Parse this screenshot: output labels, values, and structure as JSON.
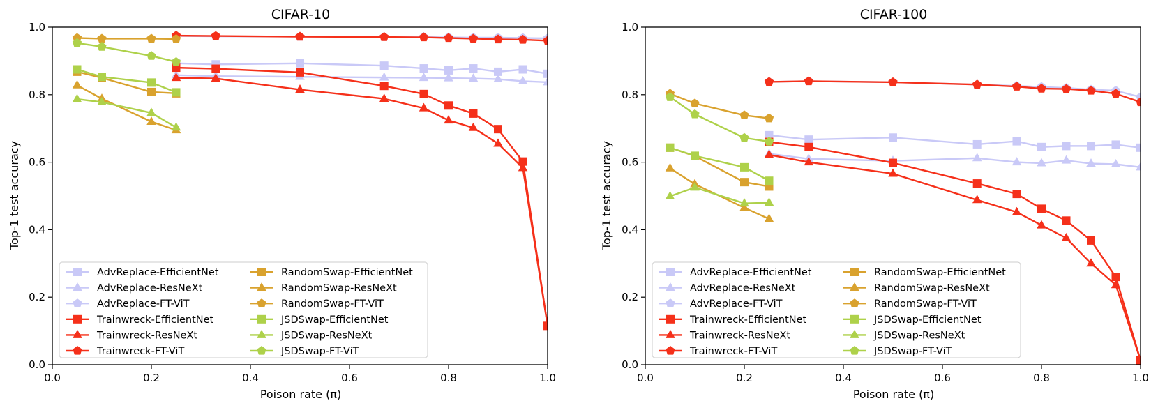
{
  "colors": {
    "advreplace": "#c9c9f7",
    "trainwreck": "#f5301a",
    "randomswap": "#d9a22e",
    "jsdswap": "#aed14a"
  },
  "chart_data": [
    {
      "type": "line",
      "title": "CIFAR-10",
      "xlabel": "Poison rate (π)",
      "ylabel": "Top-1 test accuracy",
      "xlim": [
        0.0,
        1.0
      ],
      "ylim": [
        0.0,
        1.0
      ],
      "xticks": [
        "0.0",
        "0.2",
        "0.4",
        "0.6",
        "0.8",
        "1.0"
      ],
      "yticks": [
        "0.0",
        "0.2",
        "0.4",
        "0.6",
        "0.8",
        "1.0"
      ],
      "legend_position": "lower-left",
      "series": [
        {
          "name": "AdvReplace-EfficientNet",
          "color_key": "advreplace",
          "marker": "square",
          "x": [
            0.25,
            0.33,
            0.5,
            0.67,
            0.75,
            0.8,
            0.85,
            0.9,
            0.95,
            1.0
          ],
          "y": [
            0.893,
            0.89,
            0.893,
            0.886,
            0.878,
            0.872,
            0.878,
            0.868,
            0.875,
            0.862
          ]
        },
        {
          "name": "AdvReplace-ResNeXt",
          "color_key": "advreplace",
          "marker": "triangle",
          "x": [
            0.25,
            0.33,
            0.5,
            0.67,
            0.75,
            0.8,
            0.85,
            0.9,
            0.95,
            1.0
          ],
          "y": [
            0.858,
            0.855,
            0.853,
            0.851,
            0.85,
            0.849,
            0.848,
            0.846,
            0.84,
            0.837
          ]
        },
        {
          "name": "AdvReplace-FT-ViT",
          "color_key": "advreplace",
          "marker": "pentagon",
          "x": [
            0.25,
            0.33,
            0.5,
            0.67,
            0.75,
            0.8,
            0.85,
            0.9,
            0.95,
            1.0
          ],
          "y": [
            0.974,
            0.973,
            0.972,
            0.971,
            0.971,
            0.97,
            0.969,
            0.969,
            0.968,
            0.967
          ]
        },
        {
          "name": "Trainwreck-EfficientNet",
          "color_key": "trainwreck",
          "marker": "square",
          "x": [
            0.25,
            0.33,
            0.5,
            0.67,
            0.75,
            0.8,
            0.85,
            0.9,
            0.95,
            1.0
          ],
          "y": [
            0.88,
            0.877,
            0.866,
            0.826,
            0.802,
            0.768,
            0.744,
            0.698,
            0.602,
            0.115
          ]
        },
        {
          "name": "Trainwreck-ResNeXt",
          "color_key": "trainwreck",
          "marker": "triangle",
          "x": [
            0.25,
            0.33,
            0.5,
            0.67,
            0.75,
            0.8,
            0.85,
            0.9,
            0.95,
            1.0
          ],
          "y": [
            0.85,
            0.848,
            0.815,
            0.788,
            0.76,
            0.724,
            0.702,
            0.655,
            0.583,
            0.115
          ]
        },
        {
          "name": "Trainwreck-FT-ViT",
          "color_key": "trainwreck",
          "marker": "pentagon",
          "x": [
            0.25,
            0.33,
            0.5,
            0.67,
            0.75,
            0.8,
            0.85,
            0.9,
            0.95,
            1.0
          ],
          "y": [
            0.975,
            0.974,
            0.972,
            0.971,
            0.97,
            0.968,
            0.966,
            0.964,
            0.963,
            0.96
          ]
        },
        {
          "name": "RandomSwap-EfficientNet",
          "color_key": "randomswap",
          "marker": "square",
          "x": [
            0.05,
            0.1,
            0.2,
            0.25
          ],
          "y": [
            0.868,
            0.85,
            0.808,
            0.804
          ]
        },
        {
          "name": "RandomSwap-ResNeXt",
          "color_key": "randomswap",
          "marker": "triangle",
          "x": [
            0.05,
            0.1,
            0.2,
            0.25
          ],
          "y": [
            0.828,
            0.788,
            0.72,
            0.695
          ]
        },
        {
          "name": "RandomSwap-FT-ViT",
          "color_key": "randomswap",
          "marker": "pentagon",
          "x": [
            0.05,
            0.1,
            0.2,
            0.25
          ],
          "y": [
            0.968,
            0.966,
            0.966,
            0.965
          ]
        },
        {
          "name": "JSDSwap-EfficientNet",
          "color_key": "jsdswap",
          "marker": "square",
          "x": [
            0.05,
            0.1,
            0.2,
            0.25
          ],
          "y": [
            0.875,
            0.853,
            0.836,
            0.807
          ]
        },
        {
          "name": "JSDSwap-ResNeXt",
          "color_key": "jsdswap",
          "marker": "triangle",
          "x": [
            0.05,
            0.1,
            0.2,
            0.25
          ],
          "y": [
            0.787,
            0.778,
            0.746,
            0.703
          ]
        },
        {
          "name": "JSDSwap-FT-ViT",
          "color_key": "jsdswap",
          "marker": "pentagon",
          "x": [
            0.05,
            0.1,
            0.2,
            0.25
          ],
          "y": [
            0.953,
            0.942,
            0.915,
            0.897
          ]
        }
      ]
    },
    {
      "type": "line",
      "title": "CIFAR-100",
      "xlabel": "Poison rate (π)",
      "ylabel": "Top-1 test accuracy",
      "xlim": [
        0.0,
        1.0
      ],
      "ylim": [
        0.0,
        1.0
      ],
      "xticks": [
        "0.0",
        "0.2",
        "0.4",
        "0.6",
        "0.8",
        "1.0"
      ],
      "yticks": [
        "0.0",
        "0.2",
        "0.4",
        "0.6",
        "0.8",
        "1.0"
      ],
      "legend_position": "lower-left",
      "series": [
        {
          "name": "AdvReplace-EfficientNet",
          "color_key": "advreplace",
          "marker": "square",
          "x": [
            0.25,
            0.33,
            0.5,
            0.67,
            0.75,
            0.8,
            0.85,
            0.9,
            0.95,
            1.0
          ],
          "y": [
            0.68,
            0.667,
            0.673,
            0.653,
            0.662,
            0.645,
            0.648,
            0.648,
            0.652,
            0.643
          ]
        },
        {
          "name": "AdvReplace-ResNeXt",
          "color_key": "advreplace",
          "marker": "triangle",
          "x": [
            0.25,
            0.33,
            0.5,
            0.67,
            0.75,
            0.8,
            0.85,
            0.9,
            0.95,
            1.0
          ],
          "y": [
            0.625,
            0.61,
            0.604,
            0.612,
            0.6,
            0.597,
            0.605,
            0.596,
            0.594,
            0.585
          ]
        },
        {
          "name": "AdvReplace-FT-ViT",
          "color_key": "advreplace",
          "marker": "pentagon",
          "x": [
            0.25,
            0.33,
            0.5,
            0.67,
            0.75,
            0.8,
            0.85,
            0.9,
            0.95,
            1.0
          ],
          "y": [
            0.838,
            0.84,
            0.837,
            0.83,
            0.826,
            0.823,
            0.82,
            0.815,
            0.812,
            0.793
          ]
        },
        {
          "name": "Trainwreck-EfficientNet",
          "color_key": "trainwreck",
          "marker": "square",
          "x": [
            0.25,
            0.33,
            0.5,
            0.67,
            0.75,
            0.8,
            0.85,
            0.9,
            0.95,
            1.0
          ],
          "y": [
            0.66,
            0.645,
            0.598,
            0.537,
            0.506,
            0.462,
            0.427,
            0.368,
            0.26,
            0.013
          ]
        },
        {
          "name": "Trainwreck-ResNeXt",
          "color_key": "trainwreck",
          "marker": "triangle",
          "x": [
            0.25,
            0.33,
            0.5,
            0.67,
            0.75,
            0.8,
            0.85,
            0.9,
            0.95,
            1.0
          ],
          "y": [
            0.622,
            0.6,
            0.566,
            0.488,
            0.452,
            0.413,
            0.375,
            0.3,
            0.236,
            0.013
          ]
        },
        {
          "name": "Trainwreck-FT-ViT",
          "color_key": "trainwreck",
          "marker": "pentagon",
          "x": [
            0.25,
            0.33,
            0.5,
            0.67,
            0.75,
            0.8,
            0.85,
            0.9,
            0.95,
            1.0
          ],
          "y": [
            0.838,
            0.84,
            0.837,
            0.83,
            0.824,
            0.818,
            0.817,
            0.812,
            0.803,
            0.778
          ]
        },
        {
          "name": "RandomSwap-EfficientNet",
          "color_key": "randomswap",
          "marker": "square",
          "x": [
            0.05,
            0.1,
            0.2,
            0.25
          ],
          "y": [
            0.643,
            0.618,
            0.541,
            0.528
          ]
        },
        {
          "name": "RandomSwap-ResNeXt",
          "color_key": "randomswap",
          "marker": "triangle",
          "x": [
            0.05,
            0.1,
            0.2,
            0.25
          ],
          "y": [
            0.582,
            0.535,
            0.465,
            0.432
          ]
        },
        {
          "name": "RandomSwap-FT-ViT",
          "color_key": "randomswap",
          "marker": "pentagon",
          "x": [
            0.05,
            0.1,
            0.2,
            0.25
          ],
          "y": [
            0.803,
            0.774,
            0.739,
            0.73
          ]
        },
        {
          "name": "JSDSwap-EfficientNet",
          "color_key": "jsdswap",
          "marker": "square",
          "x": [
            0.05,
            0.1,
            0.2,
            0.25
          ],
          "y": [
            0.643,
            0.619,
            0.585,
            0.545
          ]
        },
        {
          "name": "JSDSwap-ResNeXt",
          "color_key": "jsdswap",
          "marker": "triangle",
          "x": [
            0.05,
            0.1,
            0.2,
            0.25
          ],
          "y": [
            0.499,
            0.525,
            0.478,
            0.48
          ]
        },
        {
          "name": "JSDSwap-FT-ViT",
          "color_key": "jsdswap",
          "marker": "pentagon",
          "x": [
            0.05,
            0.1,
            0.2,
            0.25
          ],
          "y": [
            0.793,
            0.742,
            0.672,
            0.661
          ]
        }
      ]
    }
  ]
}
